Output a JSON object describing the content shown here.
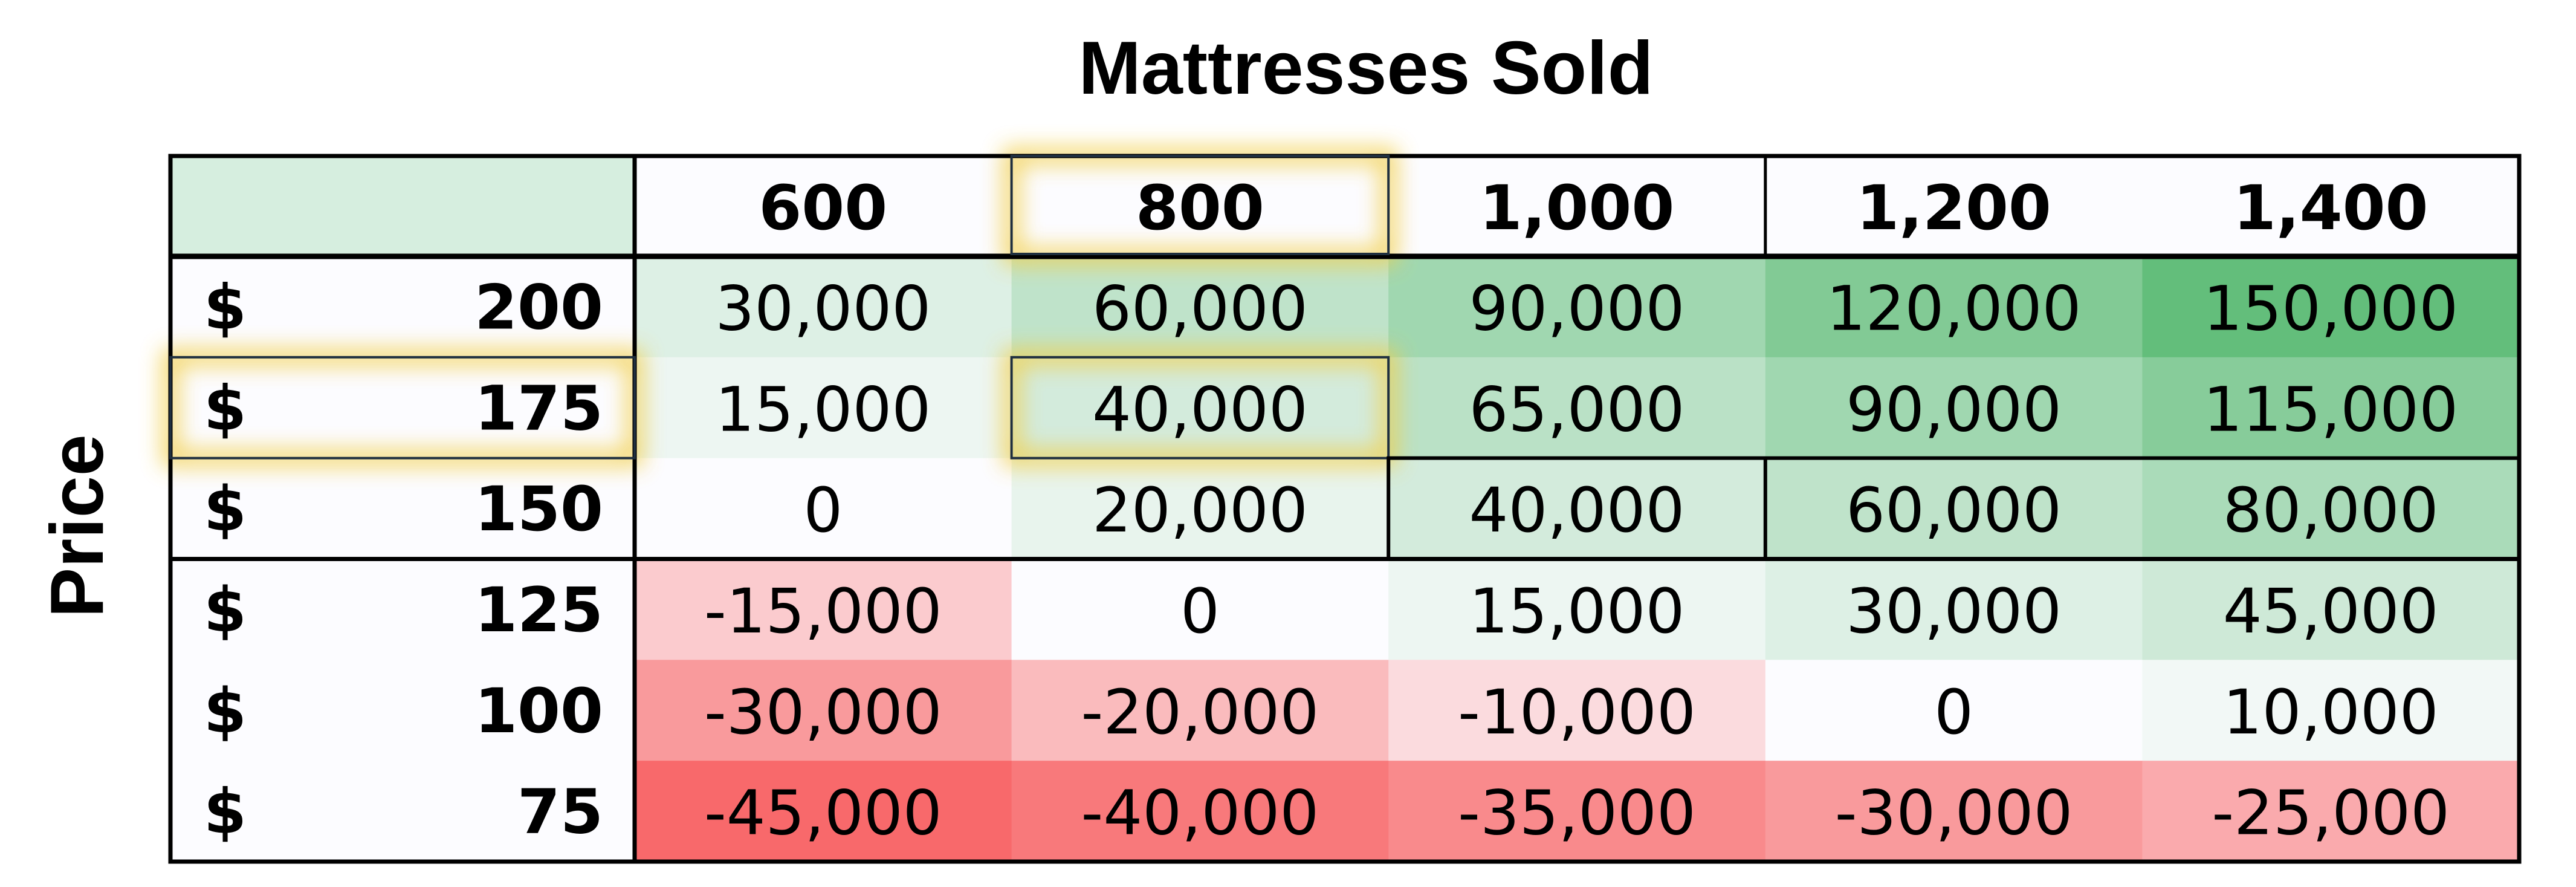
{
  "chart_data": {
    "type": "heatmap",
    "title": "Mattresses Sold",
    "xlabel": "Mattresses Sold",
    "ylabel": "Price",
    "currency_symbol": "$",
    "x": [
      "600",
      "800",
      "1,000",
      "1,200",
      "1,400"
    ],
    "y": [
      "200",
      "175",
      "150",
      "125",
      "100",
      "75"
    ],
    "values": [
      [
        30000,
        60000,
        90000,
        120000,
        150000
      ],
      [
        15000,
        40000,
        65000,
        90000,
        115000
      ],
      [
        0,
        20000,
        40000,
        60000,
        80000
      ],
      [
        -15000,
        0,
        15000,
        30000,
        45000
      ],
      [
        -30000,
        -20000,
        -10000,
        0,
        10000
      ],
      [
        -45000,
        -40000,
        -35000,
        -30000,
        -25000
      ]
    ],
    "value_labels": [
      [
        "30,000",
        "60,000",
        "90,000",
        "120,000",
        "150,000"
      ],
      [
        "15,000",
        "40,000",
        "65,000",
        "90,000",
        "115,000"
      ],
      [
        "0",
        "20,000",
        "40,000",
        "60,000",
        "80,000"
      ],
      [
        "-15,000",
        "0",
        "15,000",
        "30,000",
        "45,000"
      ],
      [
        "-30,000",
        "-20,000",
        "-10,000",
        "0",
        "10,000"
      ],
      [
        "-45,000",
        "-40,000",
        "-35,000",
        "-30,000",
        "-25,000"
      ]
    ],
    "highlighted": {
      "row": "175",
      "column": "800"
    },
    "colors": {
      "positive_max": "#63be7b",
      "neutral": "#fcfcff",
      "negative_max": "#f8696b",
      "corner": "#d6eedf",
      "highlight_glow": "#f2cf4a",
      "border": "#000000"
    }
  }
}
